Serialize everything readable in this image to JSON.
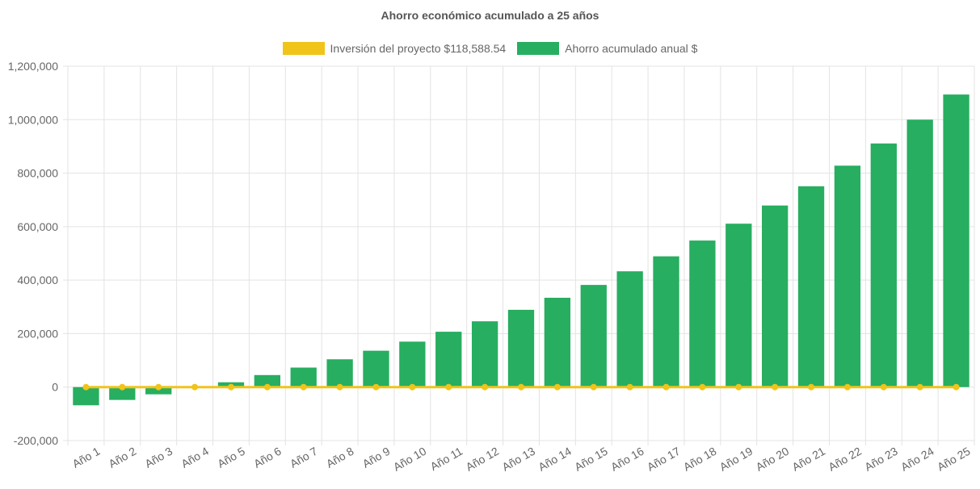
{
  "colors": {
    "investment": "#f0c419",
    "savings": "#27ae60",
    "grid": "#e3e3e3",
    "zero_line": "#cfcfcf",
    "tick_text": "#666666"
  },
  "chart_data": {
    "type": "bar",
    "title": "Ahorro económico acumulado a 25 años",
    "xlabel": "",
    "ylabel": "",
    "ylim": [
      -200000,
      1200000
    ],
    "yticks": [
      -200000,
      0,
      200000,
      400000,
      600000,
      800000,
      1000000,
      1200000
    ],
    "ytick_labels": [
      "-200,000",
      "0",
      "200,000",
      "400,000",
      "600,000",
      "800,000",
      "1,000,000",
      "1,200,000"
    ],
    "grid": true,
    "legend_position": "top-center",
    "categories": [
      "Año 1",
      "Año 2",
      "Año 3",
      "Año 4",
      "Año 5",
      "Año 6",
      "Año 7",
      "Año 8",
      "Año 9",
      "Año 10",
      "Año 11",
      "Año 12",
      "Año 13",
      "Año 14",
      "Año 15",
      "Año 16",
      "Año 17",
      "Año 18",
      "Año 19",
      "Año 20",
      "Año 21",
      "Año 22",
      "Año 23",
      "Año 24",
      "Año 25"
    ],
    "series": [
      {
        "name": "Inversión del proyecto $118,588.54",
        "type": "line",
        "values": [
          0,
          0,
          0,
          0,
          0,
          0,
          0,
          0,
          0,
          0,
          0,
          0,
          0,
          0,
          0,
          0,
          0,
          0,
          0,
          0,
          0,
          0,
          0,
          0,
          0
        ]
      },
      {
        "name": "Ahorro acumulado anual $",
        "type": "bar",
        "values": [
          -68000,
          -48000,
          -27000,
          -3000,
          18000,
          45000,
          73000,
          104000,
          136000,
          170000,
          207000,
          246000,
          289000,
          334000,
          382000,
          433000,
          489000,
          548000,
          611000,
          679000,
          751000,
          828000,
          911000,
          1000000,
          1094000
        ]
      }
    ]
  }
}
